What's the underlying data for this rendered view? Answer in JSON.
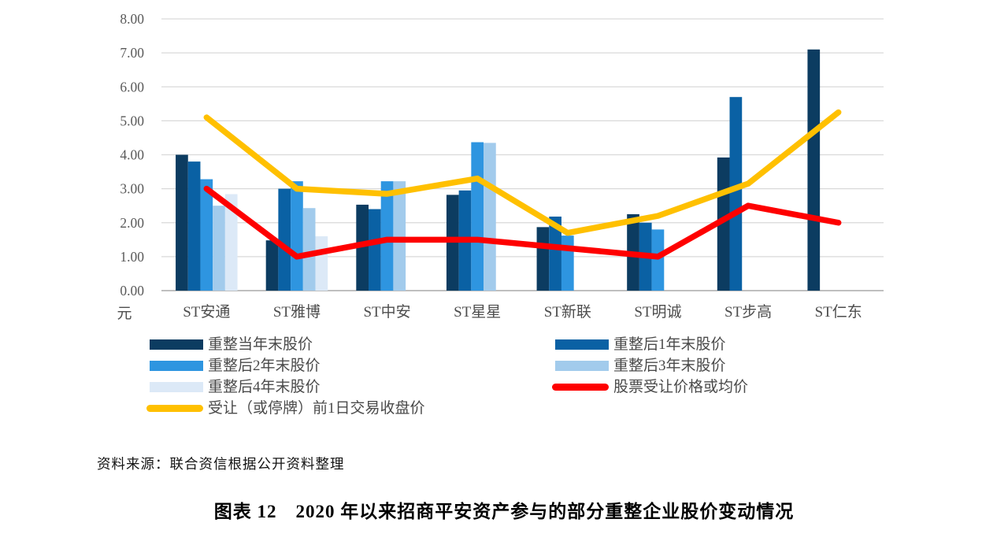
{
  "chart_data": {
    "type": "bar",
    "subtype": "grouped-bars-with-overlaid-lines",
    "title": "图表 12　2020 年以来招商平安资产参与的部分重整企业股价变动情况",
    "xlabel": "",
    "ylabel": "元",
    "ylim": [
      0,
      8
    ],
    "grid": true,
    "y_ticks": [
      "0.00",
      "1.00",
      "2.00",
      "3.00",
      "4.00",
      "5.00",
      "6.00",
      "7.00",
      "8.00"
    ],
    "categories": [
      "ST安通",
      "ST雅博",
      "ST中安",
      "ST星星",
      "ST新联",
      "ST明诚",
      "ST步高",
      "ST仁东"
    ],
    "bar_series": [
      {
        "name": "重整当年末股价",
        "color": "#0C3C61",
        "values": [
          4.0,
          1.48,
          2.53,
          2.82,
          1.87,
          2.25,
          3.92,
          7.1
        ]
      },
      {
        "name": "重整后1年末股价",
        "color": "#0A61A4",
        "values": [
          3.8,
          3.0,
          2.4,
          2.95,
          2.18,
          2.0,
          5.7,
          null
        ]
      },
      {
        "name": "重整后2年末股价",
        "color": "#2E95E0",
        "values": [
          3.28,
          3.22,
          3.22,
          4.37,
          1.62,
          1.8,
          null,
          null
        ]
      },
      {
        "name": "重整后3年末股价",
        "color": "#A2CBEC",
        "values": [
          2.5,
          2.43,
          3.22,
          4.35,
          null,
          null,
          null,
          null
        ]
      },
      {
        "name": "重整后4年末股价",
        "color": "#DCE9F7",
        "values": [
          2.84,
          1.6,
          null,
          null,
          null,
          null,
          null,
          null
        ]
      }
    ],
    "line_series": [
      {
        "name": "股票受让价格或均价",
        "color": "#FE0000",
        "values": [
          3.0,
          1.0,
          1.5,
          1.5,
          1.25,
          1.0,
          2.5,
          2.0
        ]
      },
      {
        "name": "受让（或停牌）前1日交易收盘价",
        "color": "#FFC000",
        "values": [
          5.1,
          3.0,
          2.85,
          3.3,
          1.7,
          2.2,
          3.15,
          5.25
        ]
      }
    ],
    "legend_position": "bottom-two-columns"
  },
  "legend": {
    "items": [
      {
        "label": "重整当年末股价",
        "color": "#0C3C61",
        "type": "bar"
      },
      {
        "label": "重整后1年末股价",
        "color": "#0A61A4",
        "type": "bar"
      },
      {
        "label": "重整后2年末股价",
        "color": "#2E95E0",
        "type": "bar"
      },
      {
        "label": "重整后3年末股价",
        "color": "#A2CBEC",
        "type": "bar"
      },
      {
        "label": "重整后4年末股价",
        "color": "#DCE9F7",
        "type": "bar"
      },
      {
        "label": "股票受让价格或均价",
        "color": "#FE0000",
        "type": "line"
      },
      {
        "label": "受让（或停牌）前1日交易收盘价",
        "color": "#FFC000",
        "type": "line"
      }
    ]
  },
  "source": {
    "text": "资料来源：联合资信根据公开资料整理"
  },
  "caption": {
    "text": "图表 12　2020 年以来招商平安资产参与的部分重整企业股价变动情况"
  },
  "colors": {
    "gridline": "#D9D9D9",
    "baseline": "#BFBFBF",
    "axis_text": "#595959"
  }
}
